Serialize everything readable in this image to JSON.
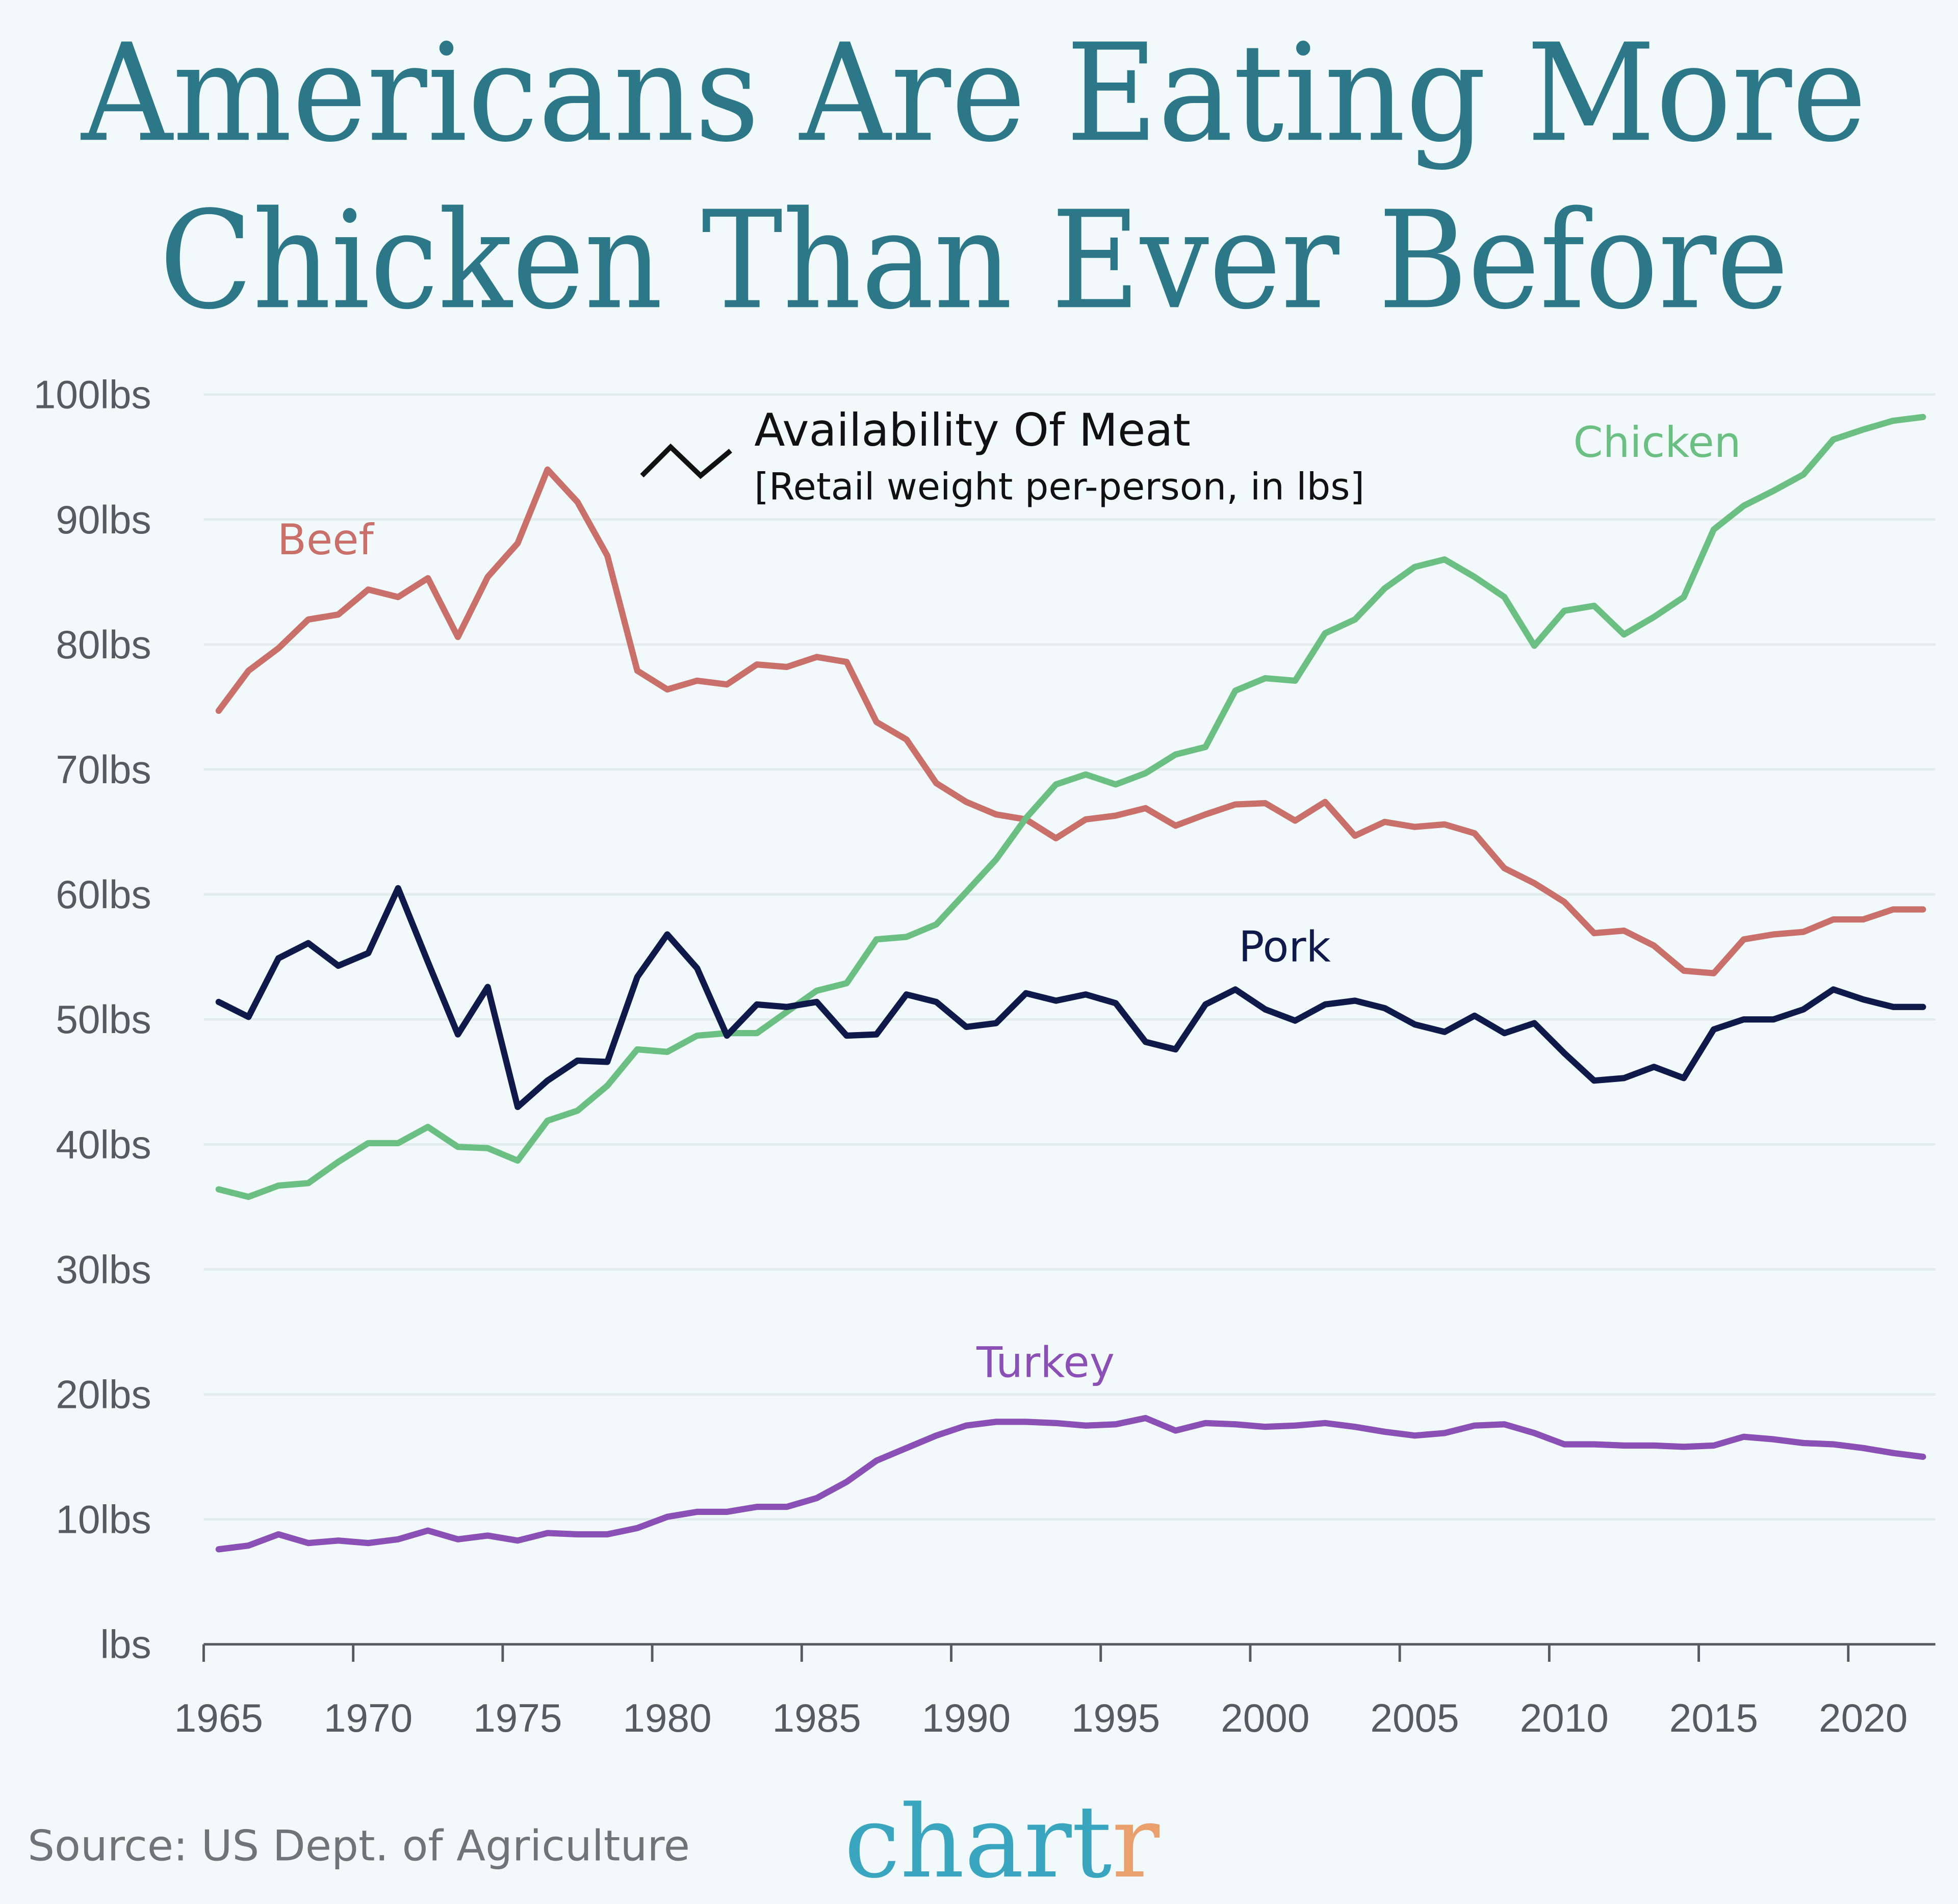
{
  "title_line1": "Americans Are Eating More",
  "title_line2": "Chicken Than Ever Before",
  "legend": {
    "title": "Availability Of Meat",
    "subtitle": "[Retail weight per-person, in lbs]",
    "icon": "zigzag-line-icon"
  },
  "source": "Source: US Dept. of Agriculture",
  "logo": {
    "main": "chart",
    "accent": "r",
    "main_color": "#3aa5be",
    "accent_color": "#e9a06c"
  },
  "background": "#f1f9fa",
  "chart_data": {
    "type": "line",
    "title": "Americans Are Eating More Chicken Than Ever Before",
    "ylabel": "Availability Of Meat [Retail weight per-person, in lbs]",
    "xlim": [
      1965,
      2022
    ],
    "ylim": [
      0,
      100
    ],
    "grid": true,
    "y_ticks": [
      0,
      10,
      20,
      30,
      40,
      50,
      60,
      70,
      80,
      90,
      100
    ],
    "y_tick_labels": [
      "lbs",
      "10lbs",
      "20lbs",
      "30lbs",
      "40lbs",
      "50lbs",
      "60lbs",
      "70lbs",
      "80lbs",
      "90lbs",
      "100lbs"
    ],
    "x_ticks": [
      1965,
      1970,
      1975,
      1980,
      1985,
      1990,
      1995,
      2000,
      2005,
      2010,
      2015,
      2020
    ],
    "x_tick_labels": [
      "1965",
      "1970",
      "1975",
      "1980",
      "1985",
      "1990",
      "1995",
      "2000",
      "2005",
      "2010",
      "2015",
      "2020"
    ],
    "x_start": 1965,
    "series": [
      {
        "name": "Beef",
        "color": "#c9706b",
        "values": [
          74.7,
          77.9,
          79.7,
          82,
          82.4,
          84.4,
          83.8,
          85.3,
          80.6,
          85.4,
          88.1,
          94,
          91.4,
          87.1,
          77.9,
          76.4,
          77.1,
          76.8,
          78.4,
          78.2,
          79,
          78.6,
          73.8,
          72.4,
          68.9,
          67.4,
          66.4,
          66,
          64.5,
          66,
          66.3,
          66.9,
          65.5,
          66.4,
          67.2,
          67.3,
          65.9,
          67.4,
          64.7,
          65.8,
          65.4,
          65.6,
          64.9,
          62.1,
          60.9,
          59.4,
          56.9,
          57.1,
          55.9,
          53.9,
          53.7,
          56.4,
          56.8,
          57,
          58,
          58,
          58.8,
          58.8
        ]
      },
      {
        "name": "Chicken",
        "color": "#6cbf82",
        "values": [
          36.4,
          35.8,
          36.7,
          36.9,
          38.6,
          40.1,
          40.1,
          41.4,
          39.8,
          39.7,
          38.7,
          41.9,
          42.7,
          44.7,
          47.6,
          47.4,
          48.7,
          48.9,
          48.9,
          50.6,
          52.3,
          52.9,
          56.4,
          56.6,
          57.6,
          60.2,
          62.8,
          66.1,
          68.8,
          69.6,
          68.8,
          69.7,
          71.2,
          71.8,
          76.3,
          77.3,
          77.1,
          80.9,
          82,
          84.5,
          86.2,
          86.8,
          85.4,
          83.8,
          79.9,
          82.7,
          83.1,
          80.8,
          82.2,
          83.8,
          89.2,
          91.1,
          92.3,
          93.6,
          96.4,
          97.2,
          97.9,
          98.2
        ]
      },
      {
        "name": "Pork",
        "color": "#0f1a4a",
        "values": [
          51.4,
          50.2,
          54.9,
          56.1,
          54.3,
          55.3,
          60.5,
          54.6,
          48.8,
          52.6,
          43,
          45.1,
          46.7,
          46.6,
          53.4,
          56.8,
          54.1,
          48.7,
          51.2,
          51,
          51.4,
          48.7,
          48.8,
          52,
          51.4,
          49.4,
          49.7,
          52.1,
          51.5,
          52,
          51.3,
          48.2,
          47.6,
          51.2,
          52.4,
          50.8,
          49.9,
          51.2,
          51.5,
          50.9,
          49.6,
          49,
          50.3,
          48.9,
          49.7,
          47.3,
          45.1,
          45.3,
          46.2,
          45.3,
          49.2,
          50,
          50,
          50.8,
          52.4,
          51.6,
          51,
          51
        ]
      },
      {
        "name": "Turkey",
        "color": "#8b50b5",
        "values": [
          7.6,
          7.9,
          8.8,
          8.1,
          8.3,
          8.1,
          8.4,
          9.1,
          8.4,
          8.7,
          8.3,
          8.9,
          8.8,
          8.8,
          9.3,
          10.2,
          10.6,
          10.6,
          11,
          11,
          11.7,
          13,
          14.7,
          15.7,
          16.7,
          17.5,
          17.8,
          17.8,
          17.7,
          17.5,
          17.6,
          18.1,
          17.1,
          17.7,
          17.6,
          17.4,
          17.5,
          17.7,
          17.4,
          17,
          16.7,
          16.9,
          17.5,
          17.6,
          16.9,
          16,
          16,
          15.9,
          15.9,
          15.8,
          15.9,
          16.6,
          16.4,
          16.1,
          16,
          15.7,
          15.3,
          15
        ]
      }
    ]
  }
}
